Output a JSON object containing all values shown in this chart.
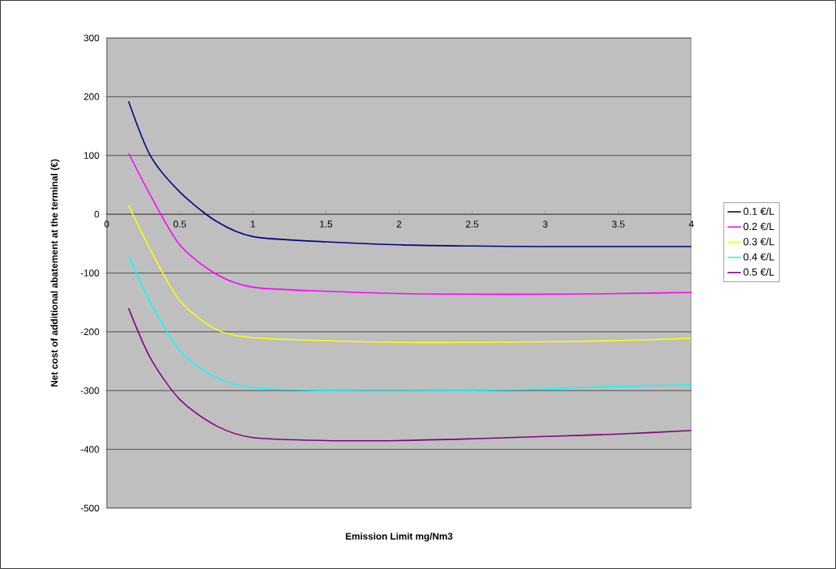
{
  "chart_data": {
    "type": "line",
    "xlabel": "Emission Limit mg/Nm3",
    "ylabel": "Net cost of additional abatement at the terminal (€)",
    "xlim": [
      0,
      4
    ],
    "xticks": [
      0,
      0.5,
      1,
      1.5,
      2,
      2.5,
      3,
      3.5,
      4
    ],
    "ylim": [
      -500,
      300
    ],
    "yticks": [
      -500,
      -400,
      -300,
      -200,
      -100,
      0,
      100,
      200,
      300
    ],
    "grid": "y",
    "legend": "right",
    "marker": "none",
    "line_style": "solid",
    "x": [
      0.15,
      0.3,
      0.5,
      0.75,
      1,
      1.5,
      2,
      2.5,
      3,
      3.5,
      4
    ],
    "series": [
      {
        "name": "0.1 €/L",
        "color": "#000080",
        "values": [
          192,
          99,
          38,
          -12,
          -38,
          -47,
          -52,
          -54,
          -55,
          -55,
          -55
        ]
      },
      {
        "name": "0.2 €/L",
        "color": "#ff00ff",
        "values": [
          104,
          32,
          -52,
          -102,
          -124,
          -131,
          -135,
          -136,
          -136,
          -135,
          -133
        ]
      },
      {
        "name": "0.3 €/L",
        "color": "#ffff00",
        "values": [
          15,
          -61,
          -147,
          -196,
          -210,
          -215,
          -218,
          -218,
          -217,
          -215,
          -211
        ]
      },
      {
        "name": "0.4 €/L",
        "color": "#00ffff",
        "values": [
          -72,
          -150,
          -232,
          -278,
          -295,
          -300,
          -301,
          -300,
          -297,
          -293,
          -290
        ]
      },
      {
        "name": "0.5 €/L",
        "color": "#800080",
        "values": [
          -160,
          -245,
          -315,
          -360,
          -380,
          -385,
          -385,
          -382,
          -378,
          -374,
          -368
        ]
      }
    ]
  }
}
